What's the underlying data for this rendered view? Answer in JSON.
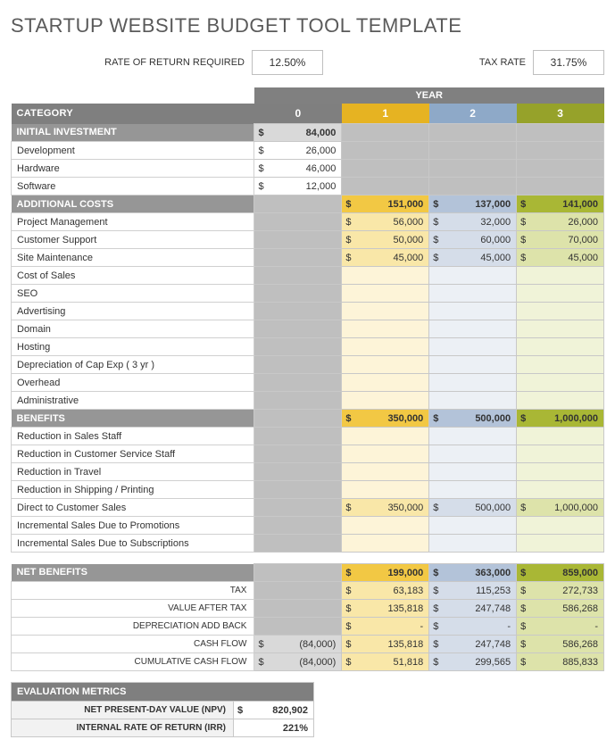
{
  "title": "STARTUP WEBSITE BUDGET TOOL TEMPLATE",
  "inputs": {
    "rate_label": "RATE OF RETURN REQUIRED",
    "rate_value": "12.50%",
    "tax_label": "TAX RATE",
    "tax_value": "31.75%"
  },
  "colors": {
    "header_grey": "#7f7f7f",
    "sub_grey": "#969696",
    "year0_bg": "#7f7f7f",
    "year1_bg": "#e6b322",
    "year2_bg": "#8ea9c8",
    "year3_bg": "#96a22a"
  },
  "year_label": "YEAR",
  "category_label": "CATEGORY",
  "years": [
    "0",
    "1",
    "2",
    "3"
  ],
  "sections": [
    {
      "title": "INITIAL INVESTMENT",
      "total": [
        "84,000",
        "",
        "",
        ""
      ],
      "total_style": [
        "bg-ltgrey bold",
        "bg-grey",
        "bg-grey",
        "bg-grey"
      ],
      "rows": [
        {
          "label": "Development",
          "vals": [
            "26,000",
            "",
            "",
            ""
          ],
          "style": [
            "bg-white",
            "bg-grey",
            "bg-grey",
            "bg-grey"
          ]
        },
        {
          "label": "Hardware",
          "vals": [
            "46,000",
            "",
            "",
            ""
          ],
          "style": [
            "bg-white",
            "bg-grey",
            "bg-grey",
            "bg-grey"
          ]
        },
        {
          "label": "Software",
          "vals": [
            "12,000",
            "",
            "",
            ""
          ],
          "style": [
            "bg-white",
            "bg-grey",
            "bg-grey",
            "bg-grey"
          ]
        }
      ]
    },
    {
      "title": "ADDITIONAL COSTS",
      "total": [
        "",
        "151,000",
        "137,000",
        "141,000"
      ],
      "total_style": [
        "bg-grey",
        "bg-yellow-d bold",
        "bg-blue-d bold",
        "bg-olive-d bold"
      ],
      "rows": [
        {
          "label": "Project Management",
          "vals": [
            "",
            "56,000",
            "32,000",
            "26,000"
          ],
          "style": [
            "bg-grey",
            "bg-yellow",
            "bg-blue",
            "bg-olive"
          ]
        },
        {
          "label": "Customer Support",
          "vals": [
            "",
            "50,000",
            "60,000",
            "70,000"
          ],
          "style": [
            "bg-grey",
            "bg-yellow",
            "bg-blue",
            "bg-olive"
          ]
        },
        {
          "label": "Site Maintenance",
          "vals": [
            "",
            "45,000",
            "45,000",
            "45,000"
          ],
          "style": [
            "bg-grey",
            "bg-yellow",
            "bg-blue",
            "bg-olive"
          ]
        },
        {
          "label": "Cost of Sales",
          "vals": [
            "",
            "",
            "",
            ""
          ],
          "style": [
            "bg-grey",
            "bg-yellow-l",
            "bg-blue-l",
            "bg-olive-l"
          ]
        },
        {
          "label": "SEO",
          "vals": [
            "",
            "",
            "",
            ""
          ],
          "style": [
            "bg-grey",
            "bg-yellow-l",
            "bg-blue-l",
            "bg-olive-l"
          ]
        },
        {
          "label": "Advertising",
          "vals": [
            "",
            "",
            "",
            ""
          ],
          "style": [
            "bg-grey",
            "bg-yellow-l",
            "bg-blue-l",
            "bg-olive-l"
          ]
        },
        {
          "label": "Domain",
          "vals": [
            "",
            "",
            "",
            ""
          ],
          "style": [
            "bg-grey",
            "bg-yellow-l",
            "bg-blue-l",
            "bg-olive-l"
          ]
        },
        {
          "label": "Hosting",
          "vals": [
            "",
            "",
            "",
            ""
          ],
          "style": [
            "bg-grey",
            "bg-yellow-l",
            "bg-blue-l",
            "bg-olive-l"
          ]
        },
        {
          "label": "Depreciation of Cap Exp  ( 3 yr )",
          "vals": [
            "",
            "",
            "",
            ""
          ],
          "style": [
            "bg-grey",
            "bg-yellow-l",
            "bg-blue-l",
            "bg-olive-l"
          ]
        },
        {
          "label": "Overhead",
          "vals": [
            "",
            "",
            "",
            ""
          ],
          "style": [
            "bg-grey",
            "bg-yellow-l",
            "bg-blue-l",
            "bg-olive-l"
          ]
        },
        {
          "label": "Administrative",
          "vals": [
            "",
            "",
            "",
            ""
          ],
          "style": [
            "bg-grey",
            "bg-yellow-l",
            "bg-blue-l",
            "bg-olive-l"
          ]
        }
      ]
    },
    {
      "title": "BENEFITS",
      "total": [
        "",
        "350,000",
        "500,000",
        "1,000,000"
      ],
      "total_style": [
        "bg-grey",
        "bg-yellow-d bold",
        "bg-blue-d bold",
        "bg-olive-d bold"
      ],
      "rows": [
        {
          "label": "Reduction in Sales Staff",
          "vals": [
            "",
            "",
            "",
            ""
          ],
          "style": [
            "bg-grey",
            "bg-yellow-l",
            "bg-blue-l",
            "bg-olive-l"
          ]
        },
        {
          "label": "Reduction in Customer Service Staff",
          "vals": [
            "",
            "",
            "",
            ""
          ],
          "style": [
            "bg-grey",
            "bg-yellow-l",
            "bg-blue-l",
            "bg-olive-l"
          ]
        },
        {
          "label": "Reduction in Travel",
          "vals": [
            "",
            "",
            "",
            ""
          ],
          "style": [
            "bg-grey",
            "bg-yellow-l",
            "bg-blue-l",
            "bg-olive-l"
          ]
        },
        {
          "label": "Reduction in Shipping / Printing",
          "vals": [
            "",
            "",
            "",
            ""
          ],
          "style": [
            "bg-grey",
            "bg-yellow-l",
            "bg-blue-l",
            "bg-olive-l"
          ]
        },
        {
          "label": "Direct to Customer Sales",
          "vals": [
            "",
            "350,000",
            "500,000",
            "1,000,000"
          ],
          "style": [
            "bg-grey",
            "bg-yellow",
            "bg-blue",
            "bg-olive"
          ]
        },
        {
          "label": "Incremental Sales Due to Promotions",
          "vals": [
            "",
            "",
            "",
            ""
          ],
          "style": [
            "bg-grey",
            "bg-yellow-l",
            "bg-blue-l",
            "bg-olive-l"
          ]
        },
        {
          "label": "Incremental Sales Due to Subscriptions",
          "vals": [
            "",
            "",
            "",
            ""
          ],
          "style": [
            "bg-grey",
            "bg-yellow-l",
            "bg-blue-l",
            "bg-olive-l"
          ]
        }
      ]
    }
  ],
  "net": {
    "title": "NET BENEFITS",
    "total": [
      "",
      "199,000",
      "363,000",
      "859,000"
    ],
    "total_style": [
      "bg-grey",
      "bg-yellow-d bold",
      "bg-blue-d bold",
      "bg-olive-d bold"
    ],
    "rows": [
      {
        "label": "TAX",
        "vals": [
          "",
          "63,183",
          "115,253",
          "272,733"
        ],
        "style": [
          "bg-grey",
          "bg-yellow",
          "bg-blue",
          "bg-olive"
        ]
      },
      {
        "label": "VALUE AFTER TAX",
        "vals": [
          "",
          "135,818",
          "247,748",
          "586,268"
        ],
        "style": [
          "bg-grey",
          "bg-yellow",
          "bg-blue",
          "bg-olive"
        ]
      },
      {
        "label": "DEPRECIATION ADD BACK",
        "vals": [
          "",
          "-",
          "-",
          "-"
        ],
        "style": [
          "bg-grey",
          "bg-yellow",
          "bg-blue",
          "bg-olive"
        ]
      },
      {
        "label": "CASH FLOW",
        "vals": [
          "(84,000)",
          "135,818",
          "247,748",
          "586,268"
        ],
        "style": [
          "bg-ltgrey",
          "bg-yellow",
          "bg-blue",
          "bg-olive"
        ]
      },
      {
        "label": "CUMULATIVE CASH FLOW",
        "vals": [
          "(84,000)",
          "51,818",
          "299,565",
          "885,833"
        ],
        "style": [
          "bg-ltgrey",
          "bg-yellow",
          "bg-blue",
          "bg-olive"
        ]
      }
    ]
  },
  "metrics": {
    "title": "EVALUATION METRICS",
    "rows": [
      {
        "label": "NET PRESENT-DAY VALUE (NPV)",
        "dollar": "$",
        "val": "820,902"
      },
      {
        "label": "INTERNAL RATE OF RETURN (IRR)",
        "dollar": "",
        "val": "221%"
      }
    ]
  }
}
